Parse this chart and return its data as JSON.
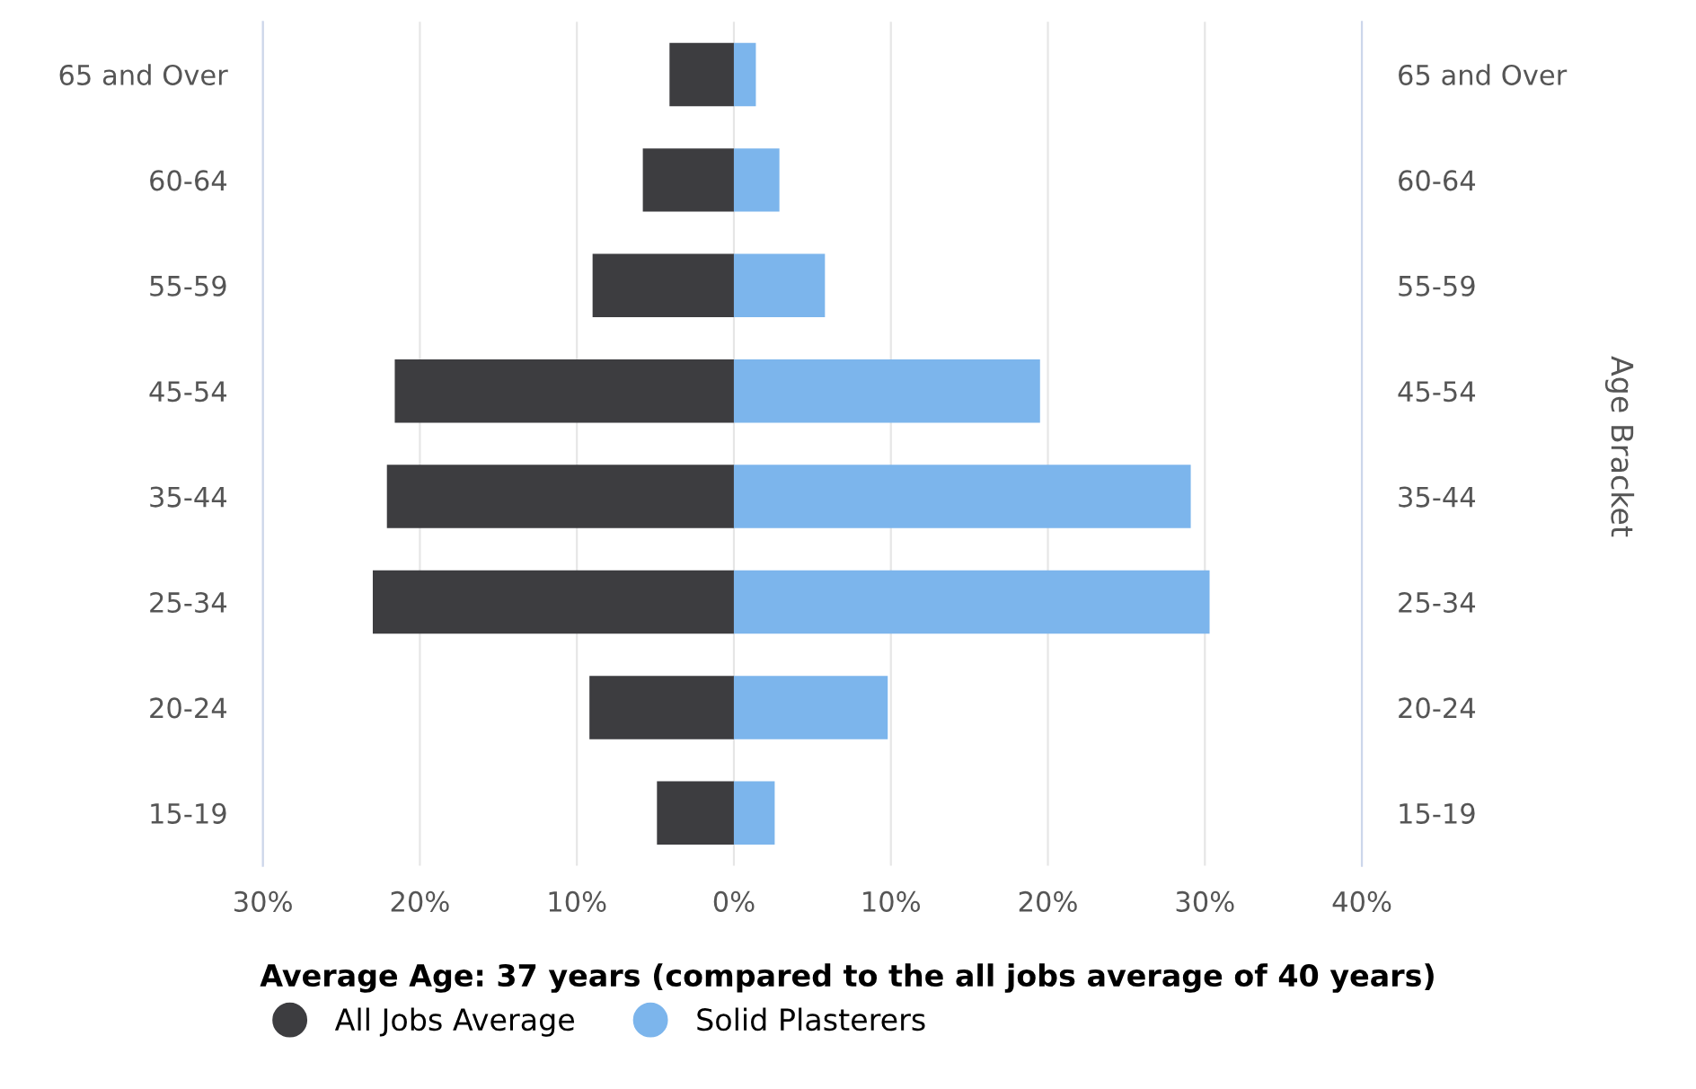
{
  "chart_data": {
    "type": "bar",
    "orientation": "horizontal",
    "stacked": true,
    "categories": [
      "65 and Over",
      "60-64",
      "55-59",
      "45-54",
      "35-44",
      "25-34",
      "20-24",
      "15-19"
    ],
    "series": [
      {
        "name": "All Jobs Average",
        "color": "#3d3d40",
        "values": [
          -4.1,
          -5.8,
          -9.0,
          -21.6,
          -22.1,
          -23.0,
          -9.2,
          -4.9
        ]
      },
      {
        "name": "Solid Plasterers",
        "color": "#7cb5ec",
        "values": [
          1.4,
          2.9,
          5.8,
          19.5,
          29.1,
          30.3,
          9.8,
          2.6
        ]
      }
    ],
    "xlim": [
      -30,
      40
    ],
    "xticks": [
      {
        "value": -30,
        "label": "30%"
      },
      {
        "value": -20,
        "label": "20%"
      },
      {
        "value": -10,
        "label": "10%"
      },
      {
        "value": 0,
        "label": "0%"
      },
      {
        "value": 10,
        "label": "10%"
      },
      {
        "value": 20,
        "label": "20%"
      },
      {
        "value": 30,
        "label": "30%"
      },
      {
        "value": 40,
        "label": "40%"
      }
    ],
    "annotations": [
      "Age Bracket"
    ],
    "legend_title": "Average Age: 37 years (compared to the all jobs average of 40 years)",
    "legend": "bottom",
    "grid": "x"
  }
}
